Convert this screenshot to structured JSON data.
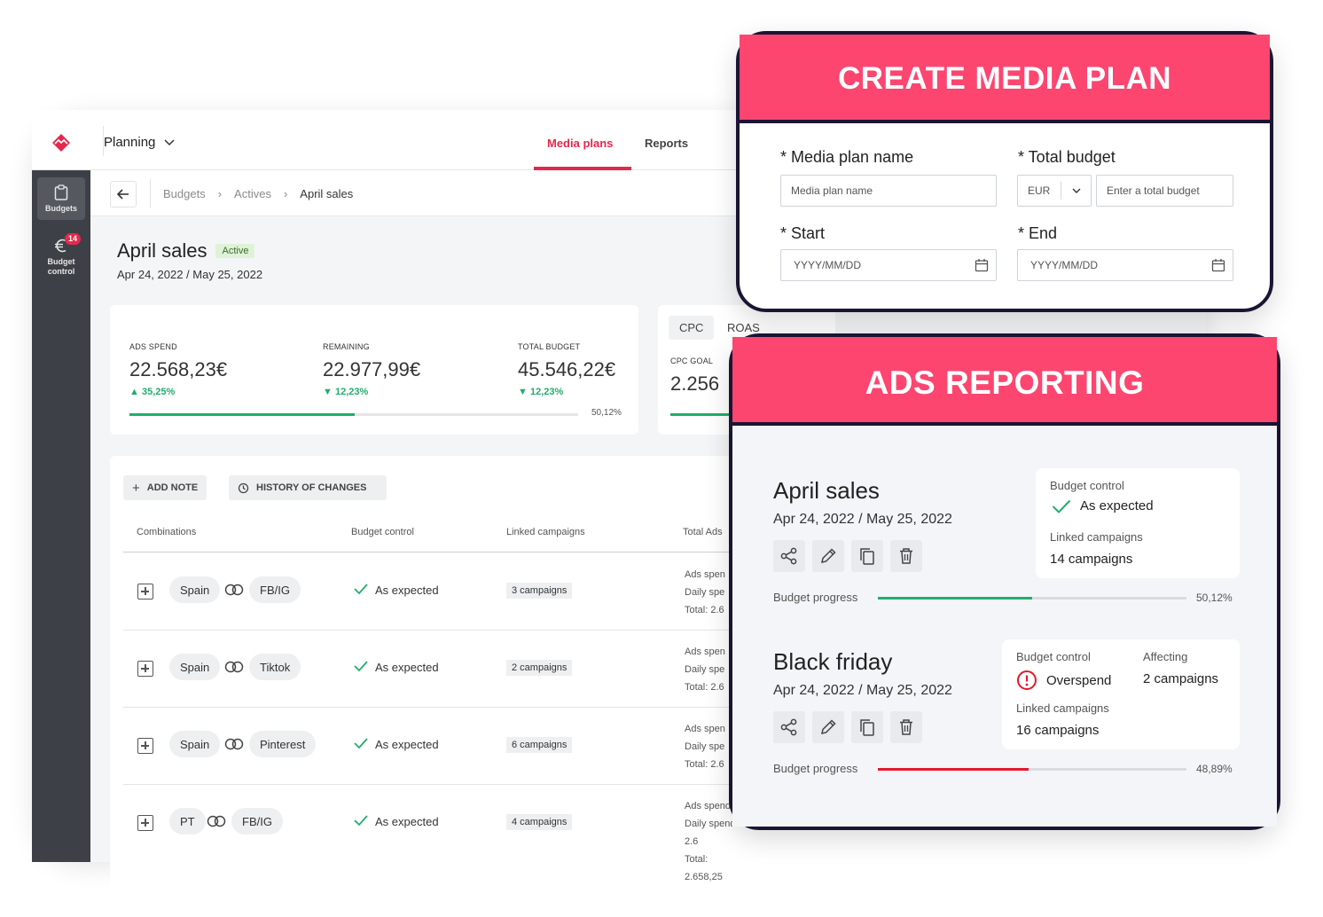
{
  "app": {
    "workspace": "Planning",
    "nav": {
      "media_plans": "Media plans",
      "reports": "Reports"
    },
    "sidebar": {
      "budgets": "Budgets",
      "budget_control_line1": "Budget",
      "budget_control_line2": "control",
      "badge": "14"
    },
    "breadcrumb": {
      "b1": "Budgets",
      "b2": "Actives",
      "b3": "April sales"
    },
    "plan": {
      "name": "April sales",
      "status": "Active",
      "dates": "Apr 24, 2022 / May 25, 2022"
    },
    "kpis": {
      "ads_spend": {
        "label": "ADS SPEND",
        "value": "22.568,23€",
        "change": "35,25%"
      },
      "remaining": {
        "label": "REMAINING",
        "value": "22.977,99€",
        "change": "12,23%"
      },
      "total_budget": {
        "label": "TOTAL BUDGET",
        "value": "45.546,22€",
        "change": "12,23%"
      },
      "progress": 50.12,
      "progress_label": "50,12%"
    },
    "cpc": {
      "tab_cpc": "CPC",
      "tab_roas": "ROAS",
      "goal_label": "CPC GOAL",
      "goal_value": "2.256"
    },
    "actions": {
      "add_note": "ADD NOTE",
      "history": "HISTORY OF CHANGES"
    },
    "table": {
      "headers": {
        "combinations": "Combinations",
        "budget_control": "Budget control",
        "linked": "Linked campaigns",
        "total": "Total Ads"
      },
      "rows": [
        {
          "country": "Spain",
          "channel": "FB/IG",
          "status": "As expected",
          "campaigns": "3 campaigns",
          "t1": "Ads spen",
          "t2": "Daily spe",
          "t3": "Total: 2.6"
        },
        {
          "country": "Spain",
          "channel": "Tiktok",
          "status": "As expected",
          "campaigns": "2 campaigns",
          "t1": "Ads spen",
          "t2": "Daily spe",
          "t3": "Total: 2.6"
        },
        {
          "country": "Spain",
          "channel": "Pinterest",
          "status": "As expected",
          "campaigns": "6 campaigns",
          "t1": "Ads spen",
          "t2": "Daily spe",
          "t3": "Total: 2.6"
        },
        {
          "country": "PT",
          "channel": "FB/IG",
          "status": "As expected",
          "campaigns": "4 campaigns",
          "t1": "Ads spend:",
          "t2": "Daily spend: 2.6",
          "t3": "Total: 2.658,25"
        }
      ]
    }
  },
  "create_media_plan": {
    "heading": "CREATE MEDIA PLAN",
    "name_label": "* Media plan name",
    "name_placeholder": "Media plan name",
    "budget_label": "* Total budget",
    "currency": "EUR",
    "budget_placeholder": "Enter a total budget",
    "start_label": "* Start",
    "start_placeholder": "YYYY/MM/DD",
    "end_label": "* End",
    "end_placeholder": "YYYY/MM/DD"
  },
  "ads_reporting": {
    "heading": "ADS REPORTING",
    "reports": [
      {
        "title": "April sales",
        "dates": "Apr 24, 2022 / May 25, 2022",
        "bc_label": "Budget control",
        "bc_value": "As expected",
        "linked_label": "Linked campaigns",
        "linked_value": "14 campaigns",
        "progress_label": "Budget progress",
        "progress": 50.12,
        "progress_pct": "50,12%",
        "color": "#1fae6c"
      },
      {
        "title": "Black friday",
        "dates": "Apr 24, 2022 / May 25, 2022",
        "bc_label": "Budget control",
        "bc_value": "Overspend",
        "affecting_label": "Affecting",
        "affecting_value": "2 campaigns",
        "linked_label": "Linked campaigns",
        "linked_value": "16 campaigns",
        "progress_label": "Budget progress",
        "progress": 48.89,
        "progress_pct": "48,89%",
        "color": "#e5172f"
      }
    ]
  },
  "colors": {
    "accent": "#e5294d",
    "header_pink": "#fc4670",
    "success": "#1fae6c",
    "danger": "#e5172f",
    "sidebar": "#3d4147"
  }
}
